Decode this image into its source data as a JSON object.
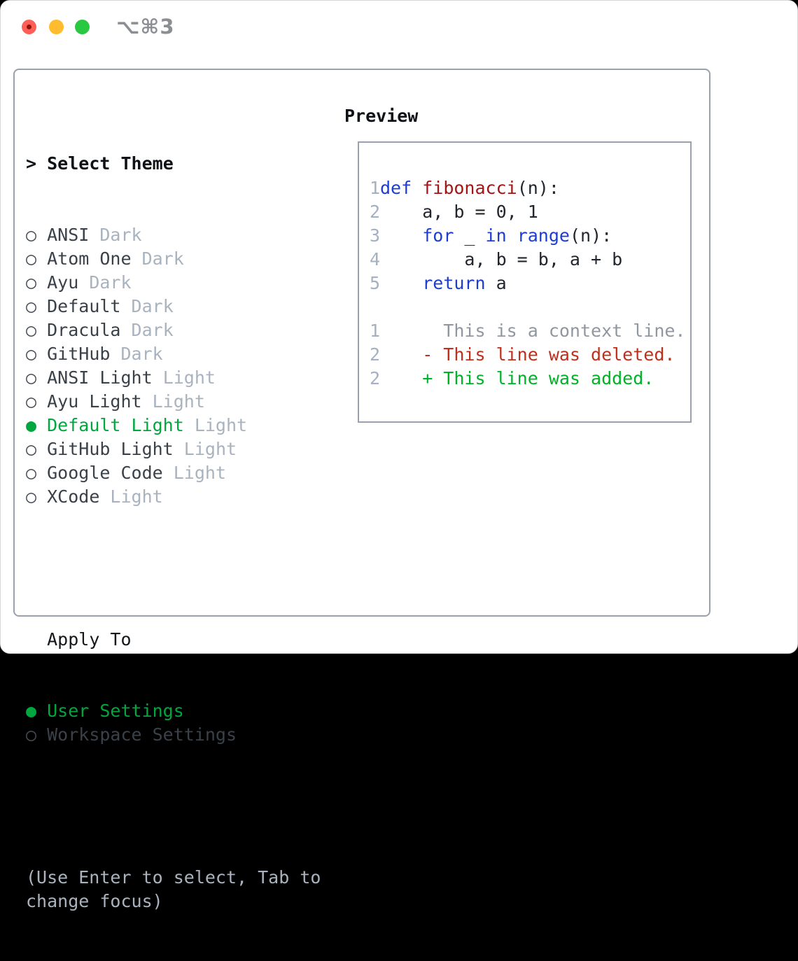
{
  "window": {
    "title": "⌥⌘3",
    "traffic_lights": [
      {
        "name": "close",
        "color": "#ff5f57"
      },
      {
        "name": "minimize",
        "color": "#febc2e"
      },
      {
        "name": "zoom",
        "color": "#28c840"
      }
    ]
  },
  "icons": {
    "radio_unselected": "○",
    "radio_selected": "●",
    "focus_caret": ">"
  },
  "theme_panel": {
    "header_prefix": ">",
    "header_label": "Select Theme",
    "items": [
      {
        "name": "ANSI",
        "variant": "Dark",
        "selected": false
      },
      {
        "name": "Atom One",
        "variant": "Dark",
        "selected": false
      },
      {
        "name": "Ayu",
        "variant": "Dark",
        "selected": false
      },
      {
        "name": "Default",
        "variant": "Dark",
        "selected": false
      },
      {
        "name": "Dracula",
        "variant": "Dark",
        "selected": false
      },
      {
        "name": "GitHub",
        "variant": "Dark",
        "selected": false
      },
      {
        "name": "ANSI Light",
        "variant": "Light",
        "selected": false
      },
      {
        "name": "Ayu Light",
        "variant": "Light",
        "selected": false
      },
      {
        "name": "Default Light",
        "variant": "Light",
        "selected": true
      },
      {
        "name": "GitHub Light",
        "variant": "Light",
        "selected": false
      },
      {
        "name": "Google Code",
        "variant": "Light",
        "selected": false
      },
      {
        "name": "XCode",
        "variant": "Light",
        "selected": false
      }
    ],
    "apply_to": {
      "label": "Apply To",
      "options": [
        {
          "name": "User Settings",
          "selected": true
        },
        {
          "name": "Workspace Settings",
          "selected": false
        }
      ]
    },
    "hint": "(Use Enter to select, Tab to change focus)"
  },
  "preview": {
    "title": "Preview",
    "code_lines": [
      {
        "num": "1",
        "segments": [
          {
            "t": "def ",
            "c": "kw"
          },
          {
            "t": "fibonacci",
            "c": "fn"
          },
          {
            "t": "(n):",
            "c": "plain"
          }
        ]
      },
      {
        "num": "2",
        "segments": [
          {
            "t": "    a, b = 0, 1",
            "c": "plain"
          }
        ]
      },
      {
        "num": "3",
        "segments": [
          {
            "t": "    ",
            "c": "plain"
          },
          {
            "t": "for",
            "c": "kw"
          },
          {
            "t": " _ ",
            "c": "plain"
          },
          {
            "t": "in",
            "c": "kw"
          },
          {
            "t": " ",
            "c": "plain"
          },
          {
            "t": "range",
            "c": "kw"
          },
          {
            "t": "(n):",
            "c": "plain"
          }
        ]
      },
      {
        "num": "4",
        "segments": [
          {
            "t": "        a, b = b, a + b",
            "c": "plain"
          }
        ]
      },
      {
        "num": "5",
        "segments": [
          {
            "t": "    ",
            "c": "plain"
          },
          {
            "t": "return",
            "c": "kw"
          },
          {
            "t": " a",
            "c": "plain"
          }
        ]
      },
      {
        "num": "",
        "segments": []
      },
      {
        "num": "1",
        "segments": [
          {
            "t": "      This is a context line.",
            "c": "ctx"
          }
        ]
      },
      {
        "num": "2",
        "segments": [
          {
            "t": "    - This line was deleted.",
            "c": "del"
          }
        ]
      },
      {
        "num": "2",
        "segments": [
          {
            "t": "    + This line was added.",
            "c": "add"
          }
        ]
      }
    ]
  },
  "colors": {
    "selected_green": "#00a73e",
    "added_green": "#00b225",
    "deleted_red": "#bf2f1c",
    "function_red": "#a31515",
    "keyword_blue": "#1c3dd4",
    "muted_gray": "#a9b3bf",
    "line_number_gray": "#a5b0c2",
    "border_gray": "#98a1ad",
    "titlebar_gray": "#8b8e93",
    "traffic_red": "#ff5f57",
    "traffic_yellow": "#febc2e",
    "traffic_green": "#28c840"
  }
}
